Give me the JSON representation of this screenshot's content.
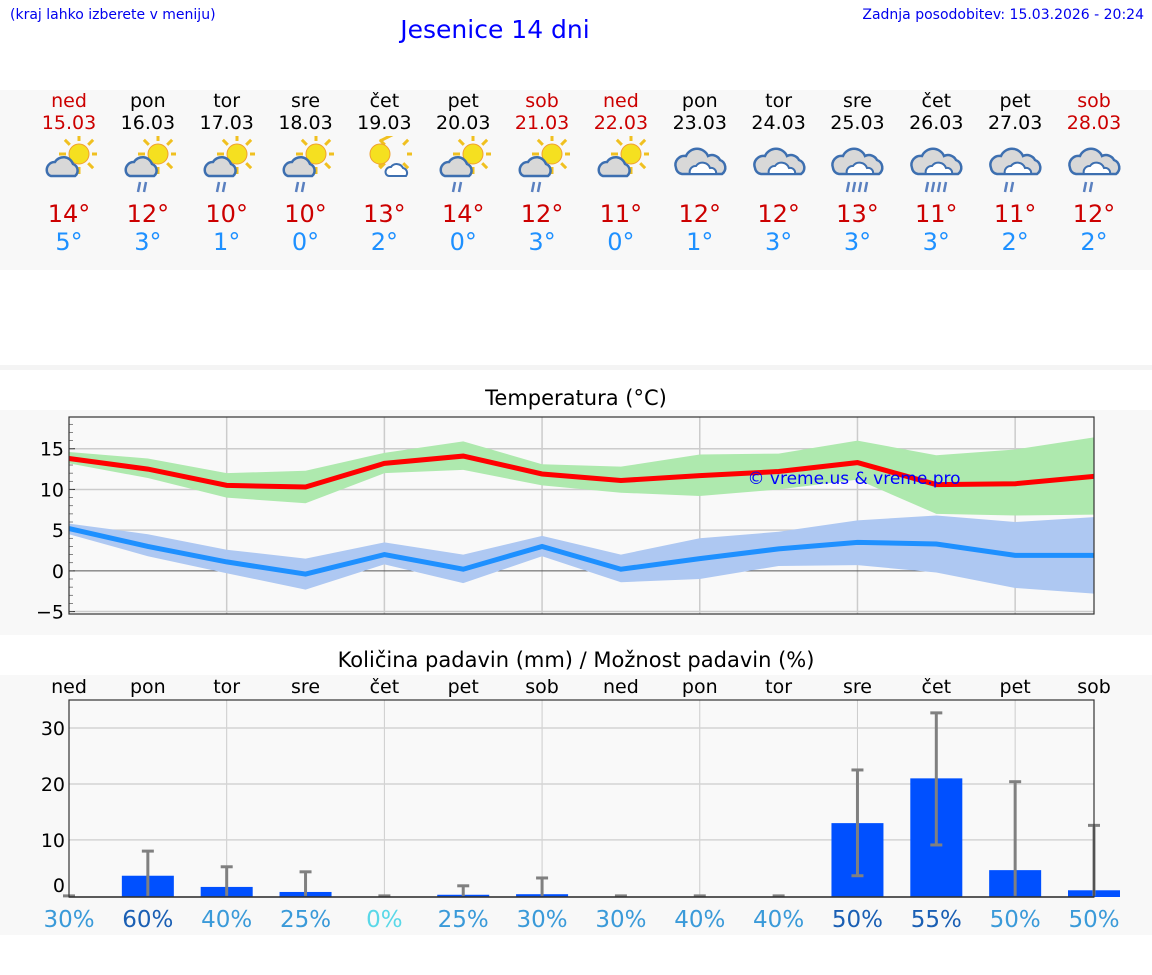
{
  "header": {
    "hint": "(kraj lahko izberete v meniju)",
    "title": "Jesenice 14 dni",
    "updated": "Zadnja posodobitev: 15.03.2026 - 20:24"
  },
  "colors": {
    "weekend": "#cc0000",
    "weekday": "#000000",
    "max": "#cc0000",
    "min": "#1e90ff",
    "bar": "#0050ff"
  },
  "days": [
    {
      "name": "ned",
      "date": "15.03",
      "weekend": true,
      "icon": "partly-cloudy-icon",
      "max": "14°",
      "min": "5°"
    },
    {
      "name": "pon",
      "date": "16.03",
      "weekend": false,
      "icon": "partly-cloudy-rain-icon",
      "max": "12°",
      "min": "3°"
    },
    {
      "name": "tor",
      "date": "17.03",
      "weekend": false,
      "icon": "partly-cloudy-rain-icon",
      "max": "10°",
      "min": "1°"
    },
    {
      "name": "sre",
      "date": "18.03",
      "weekend": false,
      "icon": "partly-cloudy-rain-icon",
      "max": "10°",
      "min": "0°"
    },
    {
      "name": "čet",
      "date": "19.03",
      "weekend": false,
      "icon": "mostly-sunny-icon",
      "max": "13°",
      "min": "2°"
    },
    {
      "name": "pet",
      "date": "20.03",
      "weekend": false,
      "icon": "partly-cloudy-rain-icon",
      "max": "14°",
      "min": "0°"
    },
    {
      "name": "sob",
      "date": "21.03",
      "weekend": true,
      "icon": "partly-cloudy-rain-icon",
      "max": "12°",
      "min": "3°"
    },
    {
      "name": "ned",
      "date": "22.03",
      "weekend": true,
      "icon": "partly-cloudy-icon",
      "max": "11°",
      "min": "0°"
    },
    {
      "name": "pon",
      "date": "23.03",
      "weekend": false,
      "icon": "cloudy-icon",
      "max": "12°",
      "min": "1°"
    },
    {
      "name": "tor",
      "date": "24.03",
      "weekend": false,
      "icon": "cloudy-icon",
      "max": "12°",
      "min": "3°"
    },
    {
      "name": "sre",
      "date": "25.03",
      "weekend": false,
      "icon": "heavy-rain-icon",
      "max": "13°",
      "min": "3°"
    },
    {
      "name": "čet",
      "date": "26.03",
      "weekend": false,
      "icon": "heavy-rain-icon",
      "max": "11°",
      "min": "3°"
    },
    {
      "name": "pet",
      "date": "27.03",
      "weekend": false,
      "icon": "rain-icon",
      "max": "11°",
      "min": "2°"
    },
    {
      "name": "sob",
      "date": "28.03",
      "weekend": true,
      "icon": "rain-icon",
      "max": "12°",
      "min": "2°"
    }
  ],
  "chart_data": [
    {
      "type": "line",
      "title": "Temperatura (°C)",
      "ylim": [
        -5.3,
        18.9
      ],
      "yticks": [
        -5,
        0,
        5,
        10,
        15
      ],
      "ytick_labels": [
        "−5",
        "0",
        "5",
        "10",
        "15"
      ],
      "watermark": "© vreme.us & vreme.pro",
      "series": [
        {
          "name": "max",
          "color": "#ff0000",
          "values": [
            13.8,
            12.5,
            10.5,
            10.3,
            13.2,
            14.1,
            11.9,
            11.1,
            11.7,
            12.2,
            13.3,
            10.6,
            10.7,
            11.6
          ],
          "band_upper": [
            14.6,
            13.8,
            12,
            12.3,
            14.5,
            15.9,
            13.1,
            12.8,
            14.3,
            14.4,
            16,
            14.2,
            14.9,
            16.4
          ],
          "band_lower": [
            13.2,
            11.4,
            9,
            8.3,
            12,
            12.4,
            10.5,
            9.6,
            9.2,
            10,
            11.2,
            7,
            6.8,
            6.9
          ],
          "band_color": "#aee9ae"
        },
        {
          "name": "min",
          "color": "#1e90ff",
          "values": [
            5.2,
            3,
            1.1,
            -0.4,
            2,
            0.2,
            3,
            0.2,
            1.5,
            2.7,
            3.5,
            3.3,
            1.9,
            1.9
          ],
          "band_upper": [
            5.8,
            4.5,
            2.6,
            1.5,
            3.5,
            2,
            4.3,
            2,
            4,
            4.8,
            6.2,
            6.8,
            6,
            6.6
          ],
          "band_lower": [
            4.5,
            1.8,
            -0.3,
            -2.3,
            0.8,
            -1.5,
            1.8,
            -1.4,
            -1,
            0.6,
            0.7,
            -0.2,
            -2.1,
            -2.8
          ],
          "band_color": "#aec8f2"
        }
      ]
    },
    {
      "type": "bar",
      "title": "Količina padavin (mm) / Možnost padavin (%)",
      "ylim": [
        -0.2,
        35
      ],
      "yticks": [
        0,
        10,
        20,
        30
      ],
      "ytick_labels": [
        "0",
        "10",
        "20",
        "30"
      ],
      "categories": [
        "ned",
        "pon",
        "tor",
        "sre",
        "čet",
        "pet",
        "sob",
        "ned",
        "pon",
        "tor",
        "sre",
        "čet",
        "pet",
        "sob"
      ],
      "values": [
        0,
        3.6,
        1.6,
        0.7,
        0,
        0.2,
        0.3,
        0,
        0,
        0,
        13,
        21,
        4.6,
        1
      ],
      "err_low": [
        0,
        0,
        0,
        0,
        0,
        0,
        0,
        0,
        0,
        0,
        3.6,
        9.1,
        0,
        0
      ],
      "err_high": [
        0,
        8,
        5.2,
        4.3,
        0,
        1.8,
        3.2,
        0,
        0,
        0,
        22.5,
        32.7,
        20.4,
        12.6
      ],
      "probability": [
        "30%",
        "60%",
        "40%",
        "25%",
        "0%",
        "25%",
        "30%",
        "30%",
        "40%",
        "40%",
        "50%",
        "55%",
        "50%",
        "50%"
      ],
      "probability_colors": [
        "#3a9ad9",
        "#1a5fb4",
        "#3a9ad9",
        "#3a9ad9",
        "#5ad8e8",
        "#3a9ad9",
        "#3a9ad9",
        "#3a9ad9",
        "#3a9ad9",
        "#3a9ad9",
        "#1a5fb4",
        "#1a5fb4",
        "#3a9ad9",
        "#3a9ad9"
      ]
    }
  ]
}
